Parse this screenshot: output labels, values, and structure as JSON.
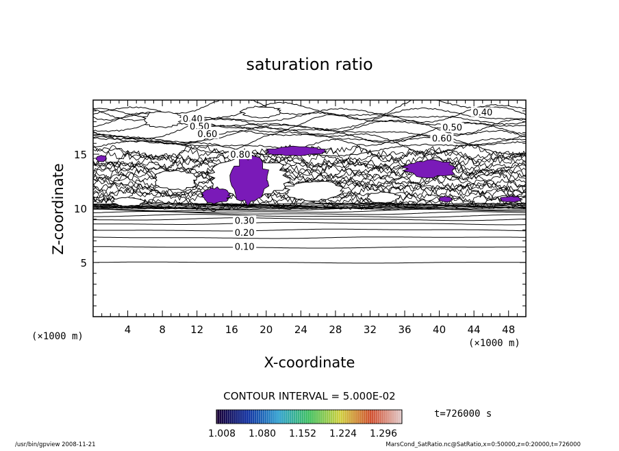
{
  "chart_data": {
    "type": "contour",
    "title": "saturation ratio",
    "xlabel": "X-coordinate",
    "ylabel": "Z-coordinate",
    "x_unit_left": "(×1000 m)",
    "x_unit_right": "(×1000 m)",
    "xlim": [
      0,
      50
    ],
    "ylim": [
      0,
      20
    ],
    "xticks": [
      4,
      8,
      12,
      16,
      20,
      24,
      28,
      32,
      36,
      40,
      44,
      48
    ],
    "yticks": [
      5,
      10,
      15
    ],
    "contour_interval_text": "CONTOUR INTERVAL = 5.000E-02",
    "contour_interval": 0.05,
    "contour_labels": [
      {
        "text": "0.40",
        "x": 11.5,
        "z": 18.1
      },
      {
        "text": "0.50",
        "x": 12.3,
        "z": 17.4
      },
      {
        "text": "0.60",
        "x": 13.2,
        "z": 16.7
      },
      {
        "text": "0.80",
        "x": 17.0,
        "z": 14.8
      },
      {
        "text": "0.40",
        "x": 45.0,
        "z": 18.7
      },
      {
        "text": "0.50",
        "x": 41.5,
        "z": 17.3
      },
      {
        "text": "0.60",
        "x": 40.3,
        "z": 16.3
      },
      {
        "text": "0.30",
        "x": 17.5,
        "z": 8.7
      },
      {
        "text": "0.20",
        "x": 17.5,
        "z": 7.6
      },
      {
        "text": "0.10",
        "x": 17.5,
        "z": 6.3
      }
    ],
    "stable_contour_levels_z": [
      5.0,
      6.4,
      7.3,
      8.0,
      8.6,
      9.0,
      9.3,
      9.55,
      9.75,
      9.9
    ],
    "supersaturated_regions": [
      {
        "name": "main-plume",
        "x": [
          16.0,
          20.2
        ],
        "z": [
          10.4,
          14.7
        ]
      },
      {
        "name": "left-patch",
        "x": [
          12.5,
          15.8
        ],
        "z": [
          10.5,
          11.9
        ]
      },
      {
        "name": "edge-left",
        "x": [
          0.4,
          1.5
        ],
        "z": [
          14.3,
          14.9
        ]
      },
      {
        "name": "upper-band-center",
        "x": [
          20.0,
          27.0
        ],
        "z": [
          14.9,
          15.7
        ]
      },
      {
        "name": "right-cluster",
        "x": [
          36.0,
          42.0
        ],
        "z": [
          12.9,
          14.4
        ]
      },
      {
        "name": "right-low",
        "x": [
          40.0,
          41.5
        ],
        "z": [
          10.6,
          11.1
        ]
      },
      {
        "name": "edge-right",
        "x": [
          47.0,
          49.5
        ],
        "z": [
          10.6,
          11.1
        ]
      }
    ],
    "colorbar": {
      "tick_labels": [
        "1.008",
        "1.080",
        "1.152",
        "1.224",
        "1.296"
      ],
      "stops": [
        "#1a0033",
        "#1030a0",
        "#30a0d0",
        "#40c060",
        "#d0d040",
        "#d05030",
        "#e0c8c8"
      ]
    },
    "time_text": "t=726000 s",
    "fill_color": "#7a1ab8"
  },
  "footer": {
    "left": "/usr/bin/gpview  2008-11-21",
    "right": "MarsCond_SatRatio.nc@SatRatio,x=0:50000,z=0:20000,t=726000"
  }
}
